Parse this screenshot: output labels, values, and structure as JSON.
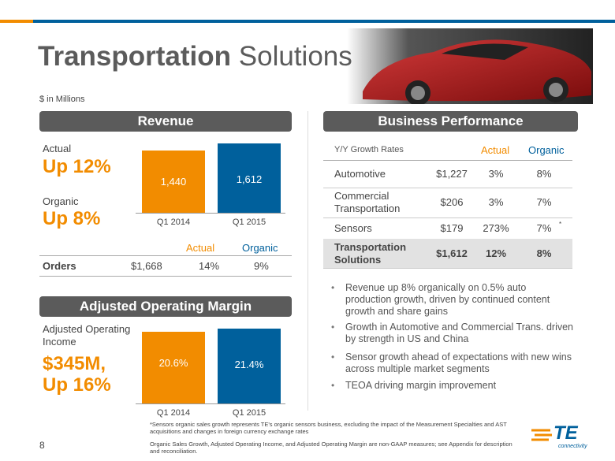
{
  "header": {
    "title_bold": "Transportation",
    "title_rest": "Solutions",
    "units": "$ in Millions"
  },
  "revenue": {
    "heading": "Revenue",
    "actual_label": "Actual",
    "actual_value": "Up 12%",
    "organic_label": "Organic",
    "organic_value": "Up 8%",
    "chart": {
      "type": "bar",
      "categories": [
        "Q1 2014",
        "Q1 2015"
      ],
      "values": [
        1440,
        1612
      ],
      "value_labels": [
        "1,440",
        "1,612"
      ],
      "colors": [
        "#f28c00",
        "#00609c"
      ]
    },
    "orders": {
      "columns": [
        "Actual",
        "Organic"
      ],
      "label": "Orders",
      "amount": "$1,668",
      "actual": "14%",
      "organic": "9%"
    }
  },
  "margin": {
    "heading": "Adjusted Operating Margin",
    "income_label": "Adjusted Operating Income",
    "income_value": "$345M,",
    "growth_value": "Up 16%",
    "chart": {
      "type": "bar",
      "categories": [
        "Q1 2014",
        "Q1 2015"
      ],
      "values": [
        20.6,
        21.4
      ],
      "value_labels": [
        "20.6%",
        "21.4%"
      ],
      "colors": [
        "#f28c00",
        "#00609c"
      ]
    }
  },
  "performance": {
    "heading": "Business Performance",
    "columns": [
      "Y/Y Growth Rates",
      "Actual",
      "Organic"
    ],
    "rows": [
      [
        "Automotive",
        "$1,227",
        "3%",
        "8%"
      ],
      [
        "Commercial Transportation",
        "$206",
        "3%",
        "7%"
      ],
      [
        "Sensors",
        "$179",
        "273%",
        "7%"
      ],
      [
        "Transportation Solutions",
        "$1,612",
        "12%",
        "8%"
      ]
    ],
    "sensors_footnote_mark": "*"
  },
  "bullets": [
    "Revenue up 8% organically on 0.5% auto production growth, driven by continued content growth and share gains",
    "Growth in Automotive and Commercial Trans. driven by strength in US and China",
    "Sensor growth ahead of expectations with new wins across multiple market segments",
    "TEOA driving margin improvement"
  ],
  "footer": {
    "footnote": "*Sensors organic sales growth represents TE's organic sensors business, excluding the impact of  the Measurement Specialties and AST acquisitions and changes in foreign currency exchange rates",
    "note": "Organic Sales Growth, Adjusted Operating Income, and Adjusted Operating Margin are non-GAAP measures; see Appendix for description and reconciliation.",
    "page": "8",
    "logo": "TE",
    "logo_sub": "connectivity"
  }
}
